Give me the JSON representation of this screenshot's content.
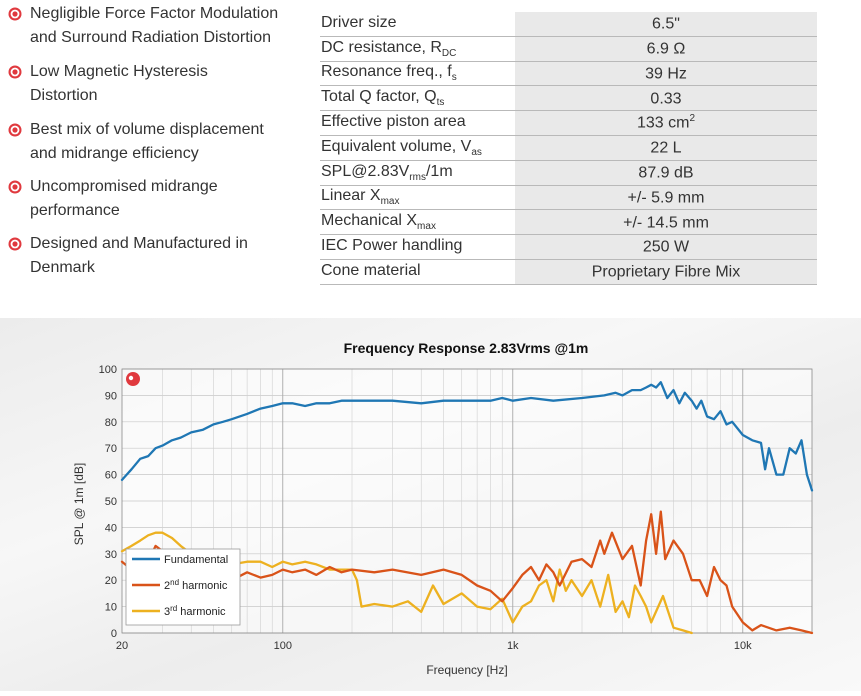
{
  "features": [
    {
      "line1": "Negligible Force Factor Modulation",
      "line2": "and Surround Radiation Distortion"
    },
    {
      "line1": "Low Magnetic Hysteresis",
      "line2": "Distortion"
    },
    {
      "line1": "Best mix of volume displacement",
      "line2": "and midrange efficiency"
    },
    {
      "line1": "Uncompromised midrange",
      "line2": "performance"
    },
    {
      "line1": "Designed and Manufactured in",
      "line2": "Denmark"
    }
  ],
  "specs": [
    {
      "label": "Driver size",
      "sub": "",
      "suffix": "",
      "value": "6.5\"",
      "vsup": ""
    },
    {
      "label": "DC resistance, R",
      "sub": "DC",
      "suffix": "",
      "value": "6.9 Ω",
      "vsup": ""
    },
    {
      "label": "Resonance freq., f",
      "sub": "s",
      "suffix": "",
      "value": "39 Hz",
      "vsup": ""
    },
    {
      "label": "Total Q factor, Q",
      "sub": "ts",
      "suffix": "",
      "value": "0.33",
      "vsup": ""
    },
    {
      "label": "Effective piston area",
      "sub": "",
      "suffix": "",
      "value": "133 cm",
      "vsup": "2"
    },
    {
      "label": "Equivalent volume, V",
      "sub": "as",
      "suffix": "",
      "value": "22 L",
      "vsup": ""
    },
    {
      "label": "SPL@2.83V",
      "sub": "rms",
      "suffix": "/1m",
      "value": "87.9 dB",
      "vsup": ""
    },
    {
      "label": "Linear X",
      "sub": "max",
      "suffix": "",
      "value": "+/- 5.9 mm",
      "vsup": ""
    },
    {
      "label": "Mechanical X",
      "sub": "max",
      "suffix": "",
      "value": "+/- 14.5 mm",
      "vsup": ""
    },
    {
      "label": "IEC Power handling",
      "sub": "",
      "suffix": "",
      "value": "250 W",
      "vsup": ""
    },
    {
      "label": "Cone material",
      "sub": "",
      "suffix": "",
      "value": "Proprietary Fibre Mix",
      "vsup": ""
    }
  ],
  "colors": {
    "accent": "#e0393e",
    "fundamental": "#1f77b4",
    "harmonic2": "#d95319",
    "harmonic3": "#edb120"
  },
  "chart_data": {
    "type": "line",
    "title": "Frequency Response 2.83Vrms @1m",
    "xlabel": "Frequency [Hz]",
    "ylabel": "SPL @ 1m [dB]",
    "xscale": "log",
    "xlim": [
      20,
      20000
    ],
    "ylim": [
      0,
      100
    ],
    "xticks": [
      {
        "v": 20,
        "label": "20"
      },
      {
        "v": 100,
        "label": "100"
      },
      {
        "v": 1000,
        "label": "1k"
      },
      {
        "v": 10000,
        "label": "10k"
      }
    ],
    "yticks": [
      0,
      10,
      20,
      30,
      40,
      50,
      60,
      70,
      80,
      90,
      100
    ],
    "grid": true,
    "legend": "bottom-left",
    "series": [
      {
        "name": "Fundamental",
        "name_sup": "",
        "name_rest": "",
        "color": "#1f77b4",
        "x": [
          20,
          22,
          24,
          26,
          28,
          30,
          33,
          36,
          40,
          45,
          50,
          55,
          60,
          70,
          80,
          90,
          100,
          110,
          125,
          140,
          160,
          180,
          200,
          250,
          300,
          400,
          500,
          600,
          700,
          800,
          900,
          1000,
          1200,
          1500,
          2000,
          2500,
          2800,
          3000,
          3300,
          3600,
          3800,
          4000,
          4200,
          4400,
          4700,
          5000,
          5300,
          5600,
          6000,
          6300,
          6600,
          7000,
          7500,
          8000,
          8500,
          9000,
          10000,
          11000,
          12000,
          12500,
          13000,
          14000,
          15000,
          16000,
          17000,
          18000,
          19000,
          20000
        ],
        "y": [
          58,
          62,
          66,
          67,
          70,
          71,
          73,
          74,
          76,
          77,
          79,
          80,
          81,
          83,
          85,
          86,
          87,
          87,
          86,
          87,
          87,
          88,
          88,
          88,
          88,
          87,
          88,
          88,
          88,
          88,
          89,
          88,
          89,
          88,
          89,
          90,
          91,
          90,
          92,
          92,
          93,
          94,
          93,
          95,
          89,
          92,
          87,
          91,
          88,
          85,
          88,
          82,
          81,
          84,
          79,
          80,
          75,
          73,
          72,
          62,
          70,
          60,
          60,
          70,
          68,
          73,
          60,
          54
        ]
      },
      {
        "name": "2",
        "name_sup": "nd",
        "name_rest": " harmonic",
        "color": "#d95319",
        "x": [
          20,
          22,
          24,
          26,
          28,
          30,
          33,
          36,
          40,
          45,
          50,
          55,
          60,
          70,
          80,
          90,
          100,
          110,
          125,
          140,
          160,
          180,
          200,
          250,
          300,
          400,
          500,
          600,
          700,
          800,
          900,
          1000,
          1100,
          1200,
          1300,
          1400,
          1500,
          1600,
          1800,
          2000,
          2200,
          2400,
          2500,
          2700,
          3000,
          3300,
          3600,
          3800,
          4000,
          4200,
          4400,
          4600,
          5000,
          5500,
          6000,
          6500,
          7000,
          7500,
          8000,
          8500,
          9000,
          10000,
          11000,
          12000,
          14000,
          16000,
          18000,
          20000
        ],
        "y": [
          27,
          24,
          30,
          27,
          33,
          31,
          30,
          24,
          27,
          22,
          22,
          25,
          20,
          23,
          21,
          22,
          24,
          23,
          24,
          22,
          25,
          23,
          24,
          23,
          24,
          22,
          24,
          22,
          18,
          16,
          12,
          17,
          22,
          25,
          20,
          26,
          23,
          18,
          27,
          28,
          25,
          35,
          30,
          38,
          28,
          33,
          18,
          35,
          45,
          30,
          46,
          28,
          35,
          30,
          20,
          20,
          14,
          25,
          20,
          18,
          10,
          4,
          1,
          3,
          1,
          2,
          1,
          0
        ]
      },
      {
        "name": "3",
        "name_sup": "rd",
        "name_rest": " harmonic",
        "color": "#edb120",
        "x": [
          20,
          22,
          24,
          26,
          28,
          30,
          33,
          36,
          40,
          45,
          50,
          55,
          60,
          70,
          80,
          90,
          100,
          110,
          125,
          140,
          160,
          180,
          200,
          210,
          220,
          250,
          300,
          350,
          400,
          450,
          500,
          600,
          700,
          800,
          900,
          1000,
          1100,
          1200,
          1300,
          1400,
          1500,
          1600,
          1700,
          1800,
          2000,
          2200,
          2400,
          2600,
          2800,
          3000,
          3200,
          3400,
          3600,
          3800,
          4000,
          4500,
          5000,
          5500,
          6000
        ],
        "y": [
          31,
          33,
          35,
          37,
          38,
          38,
          36,
          33,
          30,
          28,
          29,
          28,
          26,
          27,
          27,
          25,
          27,
          26,
          27,
          26,
          24,
          24,
          24,
          20,
          10,
          11,
          10,
          12,
          8,
          18,
          11,
          15,
          10,
          9,
          13,
          4,
          10,
          12,
          18,
          20,
          12,
          24,
          16,
          20,
          14,
          20,
          10,
          22,
          8,
          12,
          6,
          18,
          14,
          10,
          4,
          14,
          2,
          1,
          0
        ]
      }
    ]
  }
}
